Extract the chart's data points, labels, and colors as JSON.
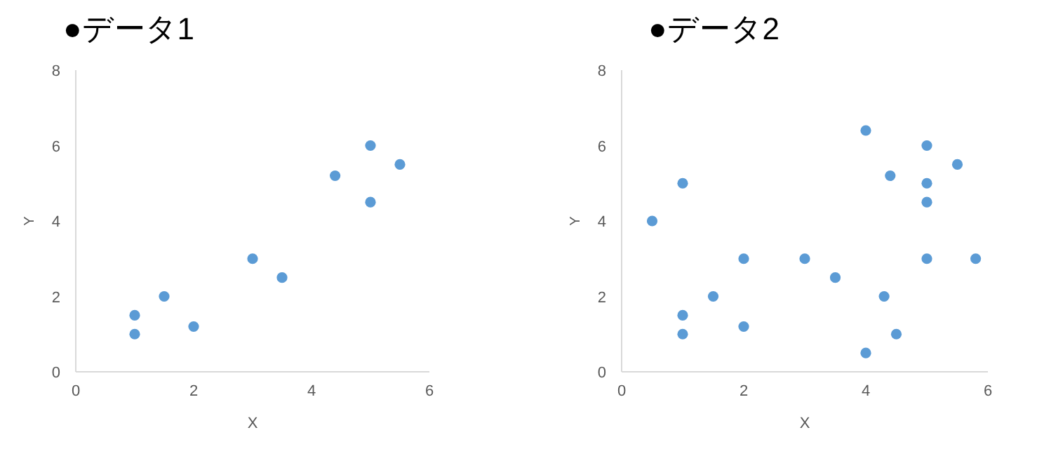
{
  "chart_data": [
    {
      "type": "scatter",
      "title": "●データ1",
      "xlabel": "X",
      "ylabel": "Y",
      "xlim": [
        0,
        6
      ],
      "ylim": [
        0,
        8
      ],
      "xticks": [
        0,
        2,
        4,
        6
      ],
      "yticks": [
        0,
        2,
        4,
        6,
        8
      ],
      "grid": false,
      "marker": "circle",
      "series": [
        {
          "color": "#5b9bd5",
          "x": [
            1,
            1,
            1.5,
            2,
            3,
            3.5,
            4.4,
            5,
            5,
            5.5
          ],
          "values": [
            1.5,
            1,
            2,
            1.2,
            3,
            2.5,
            5.2,
            6,
            4.5,
            5.5
          ]
        }
      ]
    },
    {
      "type": "scatter",
      "title": "●データ2",
      "xlabel": "X",
      "ylabel": "Y",
      "xlim": [
        0,
        6
      ],
      "ylim": [
        0,
        8
      ],
      "xticks": [
        0,
        2,
        4,
        6
      ],
      "yticks": [
        0,
        2,
        4,
        6,
        8
      ],
      "grid": false,
      "marker": "circle",
      "series": [
        {
          "color": "#5b9bd5",
          "x": [
            0.5,
            1,
            1,
            1,
            1.5,
            2,
            2,
            3,
            3.5,
            4,
            4,
            4.3,
            4.4,
            4.5,
            5,
            5,
            5,
            5,
            5.5,
            5.8
          ],
          "values": [
            4,
            5,
            1.5,
            1,
            2,
            3,
            1.2,
            3,
            2.5,
            6.4,
            0.5,
            2,
            5.2,
            1,
            6,
            5,
            4.5,
            3,
            5.5,
            3
          ]
        }
      ]
    }
  ]
}
